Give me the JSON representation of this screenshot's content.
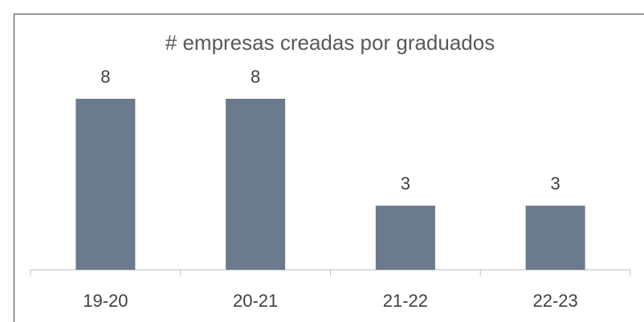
{
  "chart_data": {
    "type": "bar",
    "title": "# empresas creadas por graduados",
    "categories": [
      "19-20",
      "20-21",
      "21-22",
      "22-23"
    ],
    "values": [
      8,
      8,
      3,
      3
    ],
    "color": "#6b7a8c"
  }
}
